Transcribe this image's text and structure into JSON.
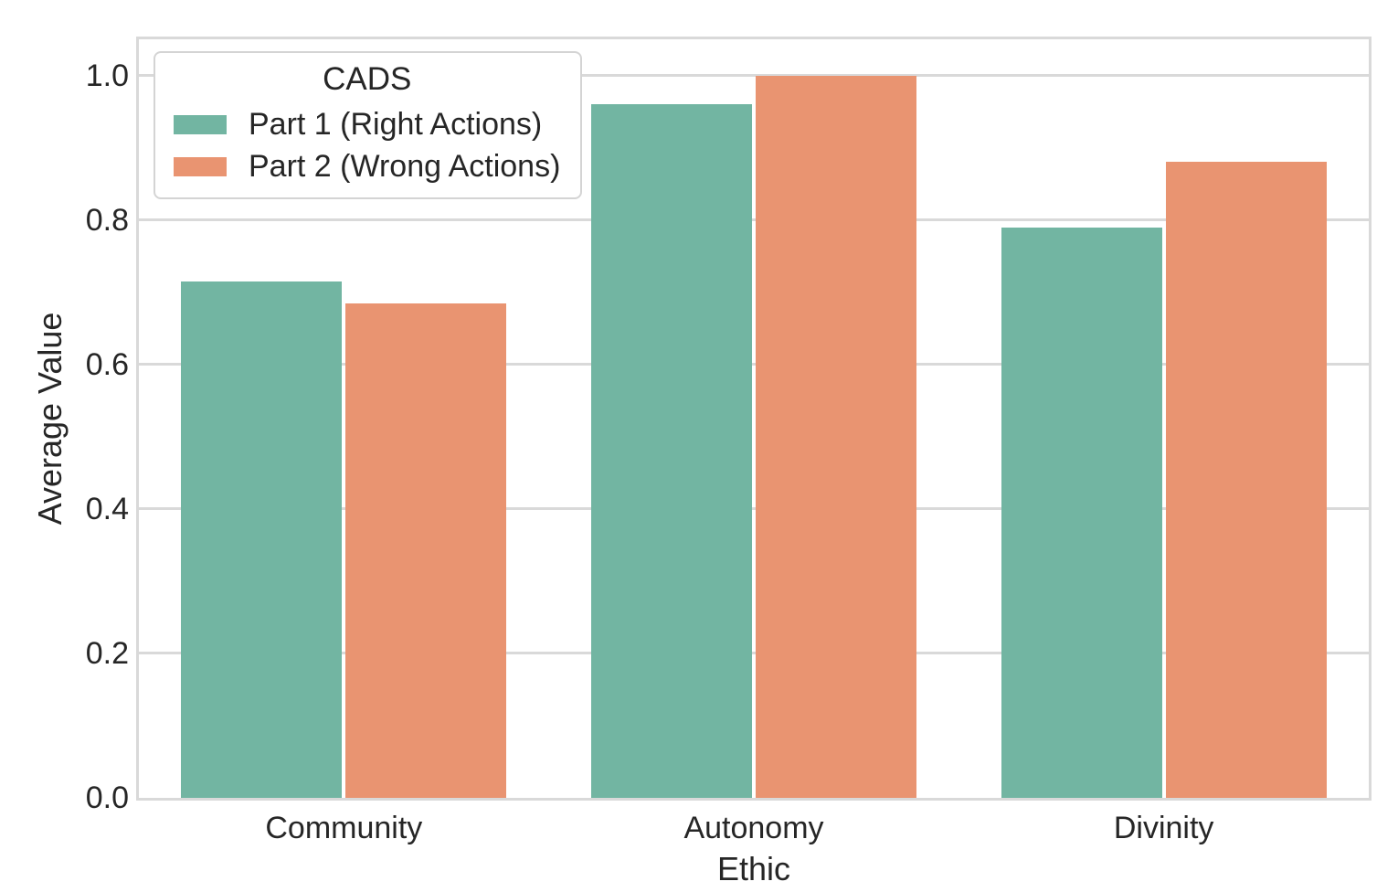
{
  "chart_data": {
    "type": "bar",
    "title": "",
    "xlabel": "Ethic",
    "ylabel": "Average Value",
    "categories": [
      "Community",
      "Autonomy",
      "Divinity"
    ],
    "series": [
      {
        "name": "Part 1 (Right Actions)",
        "color": "#72b5a2",
        "values": [
          0.715,
          0.96,
          0.79
        ]
      },
      {
        "name": "Part 2 (Wrong Actions)",
        "color": "#e99471",
        "values": [
          0.685,
          1.0,
          0.88
        ]
      }
    ],
    "legend_title": "CADS",
    "legend_position": "upper left",
    "ylim": [
      0,
      1.05
    ],
    "yticks": [
      "0.0",
      "0.2",
      "0.4",
      "0.6",
      "0.8",
      "1.0"
    ],
    "grid": true,
    "grid_color": "#d9d9d9",
    "bar_group_width_fraction": 0.8,
    "colors": {
      "text": "#262626",
      "spine": "#d9d9d9",
      "background": "#ffffff"
    }
  }
}
